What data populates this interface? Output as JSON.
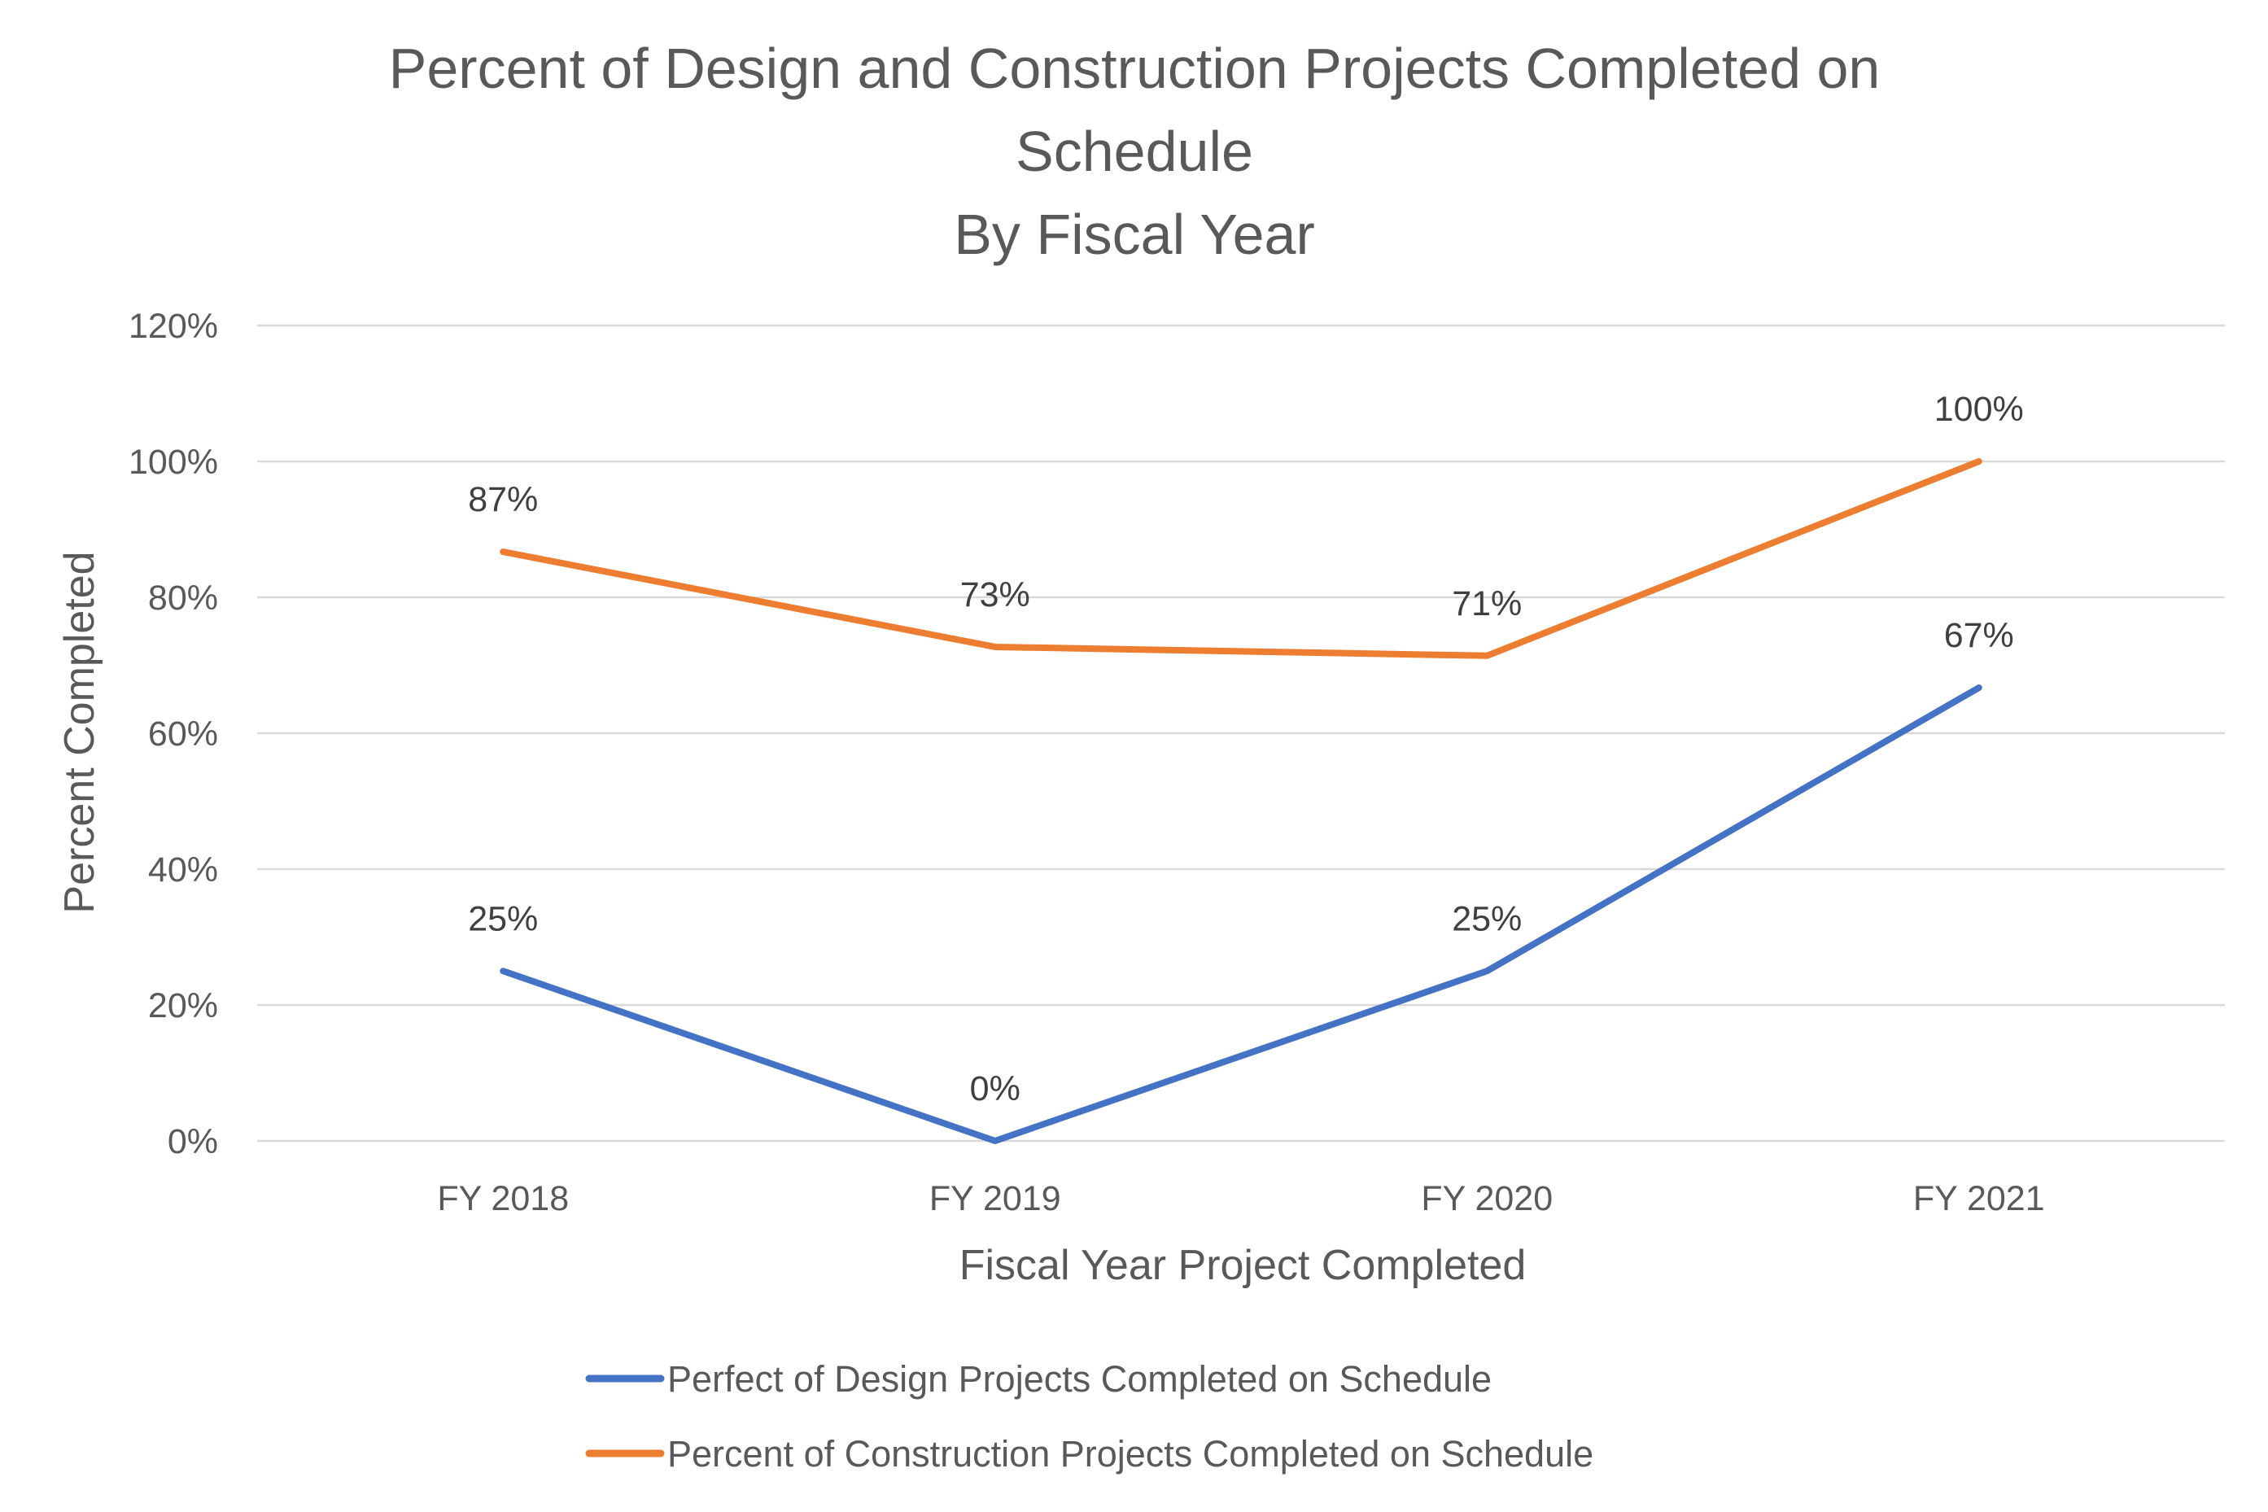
{
  "chart_data": {
    "type": "line",
    "title": [
      "Percent of Design and Construction Projects Completed on",
      "Schedule",
      "By Fiscal Year"
    ],
    "xlabel": "Fiscal Year Project Completed",
    "ylabel": "Percent Completed",
    "categories": [
      "FY 2018",
      "FY 2019",
      "FY 2020",
      "FY 2021"
    ],
    "ylim": [
      0,
      120
    ],
    "yticks": [
      0,
      20,
      40,
      60,
      80,
      100,
      120
    ],
    "ytick_labels": [
      "0%",
      "20%",
      "40%",
      "60%",
      "80%",
      "100%",
      "120%"
    ],
    "grid": true,
    "legend_position": "bottom",
    "series": [
      {
        "name": "Perfect of Design Projects Completed on Schedule",
        "color": "#4472C4",
        "values": [
          25,
          0,
          25,
          66.7
        ],
        "labels": [
          "25%",
          "0%",
          "25%",
          "67%"
        ]
      },
      {
        "name": "Percent of Construction Projects Completed on Schedule",
        "color": "#ED7D31",
        "values": [
          86.7,
          72.7,
          71.4,
          100
        ],
        "labels": [
          "87%",
          "73%",
          "71%",
          "100%"
        ]
      }
    ]
  }
}
